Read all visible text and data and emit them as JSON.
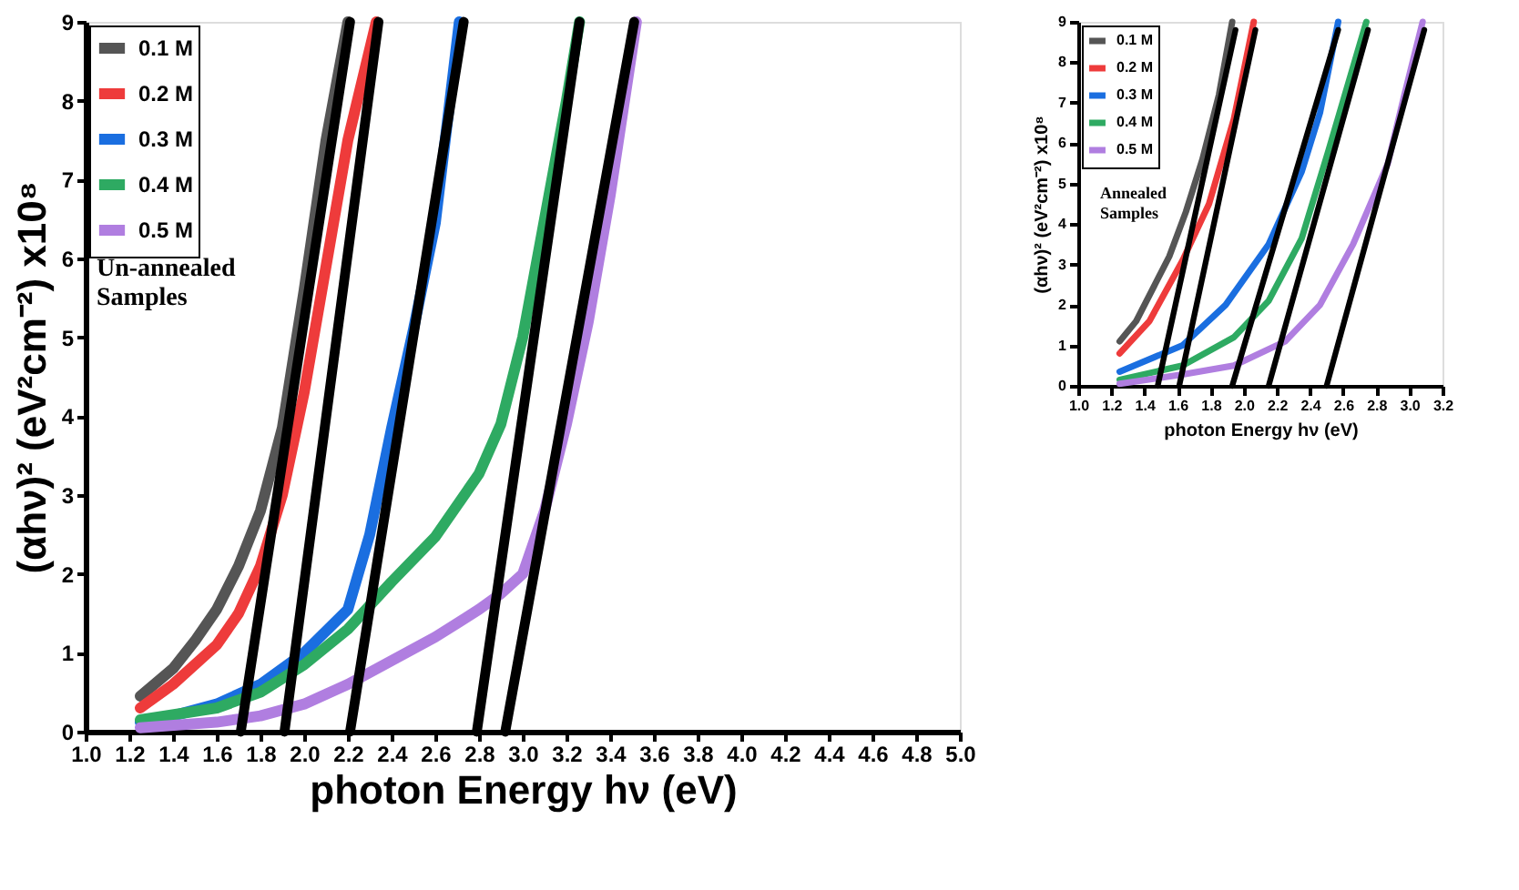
{
  "chart_data": [
    {
      "type": "line",
      "xlabel": "photon Energy hν (eV)",
      "ylabel": "(αhν)² (eV²cm⁻²) x10⁸",
      "xlim": [
        1.0,
        5.0
      ],
      "ylim": [
        0,
        9
      ],
      "xticks": [
        {
          "value": 1,
          "label": "1.0"
        },
        1.2,
        1.4,
        1.6,
        1.8,
        {
          "value": 2,
          "label": "2.0"
        },
        2.2,
        2.4,
        2.6,
        2.8,
        {
          "value": 3,
          "label": "3.0"
        },
        3.2,
        3.4,
        3.6,
        3.8,
        {
          "value": 4,
          "label": "4.0"
        },
        4.2,
        4.4,
        4.6,
        4.8,
        {
          "value": 5,
          "label": "5.0"
        }
      ],
      "yticks": [
        0,
        1,
        2,
        3,
        4,
        5,
        6,
        7,
        8,
        9
      ],
      "grid": false,
      "legend": "top left",
      "annotations": [
        "Un-annealed\nSamples"
      ],
      "series": [
        {
          "name": "0.1 M",
          "color": "#555555",
          "x": [
            1.25,
            1.4,
            1.5,
            1.6,
            1.7,
            1.8,
            1.9,
            2.0,
            2.1,
            2.2
          ],
          "values": [
            0.45,
            0.8,
            1.15,
            1.55,
            2.1,
            2.8,
            3.85,
            5.6,
            7.5,
            9
          ]
        },
        {
          "name": "0.2 M",
          "color": "#ee3b3b",
          "x": [
            1.25,
            1.4,
            1.6,
            1.7,
            1.8,
            1.9,
            2.0,
            2.1,
            2.2,
            2.33
          ],
          "values": [
            0.3,
            0.6,
            1.1,
            1.5,
            2.1,
            3.0,
            4.3,
            5.9,
            7.5,
            9
          ]
        },
        {
          "name": "0.3 M",
          "color": "#1a6ee0",
          "x": [
            1.25,
            1.4,
            1.6,
            1.8,
            2.0,
            2.2,
            2.3,
            2.4,
            2.5,
            2.6,
            2.71
          ],
          "values": [
            0.12,
            0.2,
            0.35,
            0.6,
            1.0,
            1.55,
            2.5,
            3.85,
            5.1,
            6.45,
            9
          ]
        },
        {
          "name": "0.4 M",
          "color": "#2eaa62",
          "x": [
            1.25,
            1.6,
            1.8,
            2.0,
            2.2,
            2.4,
            2.6,
            2.8,
            2.9,
            3.0,
            3.1,
            3.2,
            3.26
          ],
          "values": [
            0.15,
            0.3,
            0.5,
            0.85,
            1.3,
            1.9,
            2.47,
            3.27,
            3.9,
            5.0,
            6.5,
            8.0,
            9
          ]
        },
        {
          "name": "0.5 M",
          "color": "#b07ee0",
          "x": [
            1.25,
            1.6,
            1.8,
            2.0,
            2.2,
            2.4,
            2.6,
            2.8,
            2.9,
            3.0,
            3.1,
            3.2,
            3.3,
            3.4,
            3.52
          ],
          "values": [
            0.05,
            0.12,
            0.2,
            0.35,
            0.6,
            0.9,
            1.2,
            1.55,
            1.75,
            2.0,
            2.8,
            3.9,
            5.2,
            6.8,
            9
          ]
        },
        {
          "color": "#000000",
          "x": [
            1.71,
            2.21
          ],
          "values": [
            0,
            9
          ]
        },
        {
          "color": "#000000",
          "x": [
            1.91,
            2.34
          ],
          "values": [
            0,
            9
          ]
        },
        {
          "color": "#000000",
          "x": [
            2.21,
            2.73
          ],
          "values": [
            0,
            9
          ]
        },
        {
          "color": "#000000",
          "x": [
            2.79,
            3.26
          ],
          "values": [
            0,
            9
          ]
        },
        {
          "color": "#000000",
          "x": [
            2.92,
            3.51
          ],
          "values": [
            0,
            9
          ]
        }
      ]
    },
    {
      "type": "line",
      "xlabel": "photon Energy hν (eV)",
      "ylabel": "(αhν)² (eV²cm⁻²) x10⁸",
      "xlim": [
        1.0,
        3.2
      ],
      "ylim": [
        0,
        9
      ],
      "xticks": [
        {
          "value": 1,
          "label": "1.0"
        },
        1.2,
        1.4,
        1.6,
        1.8,
        {
          "value": 2,
          "label": "2.0"
        },
        2.2,
        2.4,
        2.6,
        2.8,
        {
          "value": 3,
          "label": "3.0"
        },
        3.2
      ],
      "yticks": [
        0,
        1,
        2,
        3,
        4,
        5,
        6,
        7,
        8,
        9
      ],
      "grid": false,
      "legend": "top left",
      "annotations": [
        "Annealed\nSamples"
      ],
      "series": [
        {
          "name": "0.1 M",
          "color": "#555555",
          "x": [
            1.25,
            1.35,
            1.45,
            1.55,
            1.65,
            1.75,
            1.85,
            1.93
          ],
          "values": [
            1.1,
            1.6,
            2.4,
            3.2,
            4.3,
            5.6,
            7.2,
            9
          ]
        },
        {
          "name": "0.2 M",
          "color": "#ee3b3b",
          "x": [
            1.25,
            1.43,
            1.63,
            1.79,
            1.94,
            2.06
          ],
          "values": [
            0.8,
            1.6,
            3.1,
            4.5,
            6.6,
            9
          ]
        },
        {
          "name": "0.3 M",
          "color": "#1a6ee0",
          "x": [
            1.25,
            1.63,
            1.89,
            2.15,
            2.35,
            2.46,
            2.57
          ],
          "values": [
            0.35,
            1.0,
            2.0,
            3.5,
            5.3,
            6.75,
            9
          ]
        },
        {
          "name": "0.4 M",
          "color": "#2eaa62",
          "x": [
            1.25,
            1.63,
            1.94,
            2.15,
            2.35,
            2.51,
            2.74
          ],
          "values": [
            0.15,
            0.5,
            1.2,
            2.1,
            3.65,
            5.8,
            9
          ]
        },
        {
          "name": "0.5 M",
          "color": "#b07ee0",
          "x": [
            1.25,
            1.63,
            1.94,
            2.25,
            2.46,
            2.66,
            2.87,
            2.97,
            3.08
          ],
          "values": [
            0.05,
            0.28,
            0.5,
            1.1,
            2.0,
            3.5,
            5.5,
            7.2,
            9
          ]
        },
        {
          "color": "#000000",
          "x": [
            1.48,
            1.95
          ],
          "values": [
            0,
            8.8
          ]
        },
        {
          "color": "#000000",
          "x": [
            1.61,
            2.07
          ],
          "values": [
            0,
            8.8
          ]
        },
        {
          "color": "#000000",
          "x": [
            1.93,
            2.57
          ],
          "values": [
            0,
            8.8
          ]
        },
        {
          "color": "#000000",
          "x": [
            2.15,
            2.75
          ],
          "values": [
            0,
            8.8
          ]
        },
        {
          "color": "#000000",
          "x": [
            2.5,
            3.09
          ],
          "values": [
            0,
            8.8
          ]
        }
      ]
    }
  ]
}
